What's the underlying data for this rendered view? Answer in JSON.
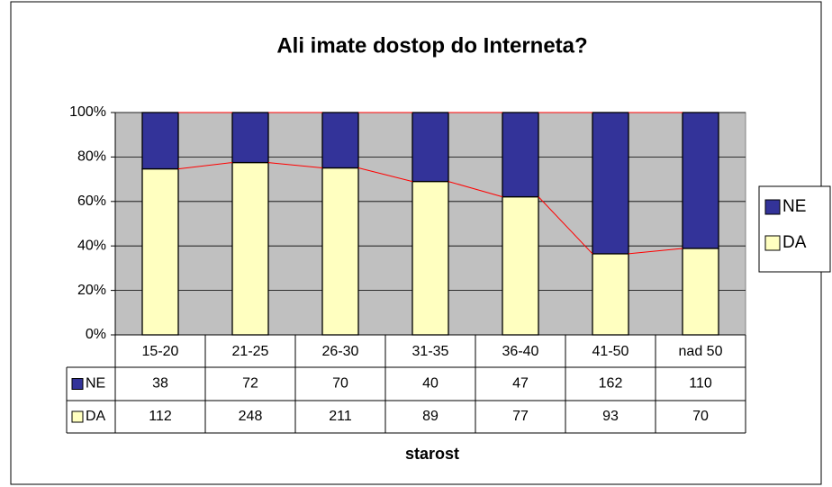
{
  "chart_data": {
    "type": "bar",
    "stacking": "percent",
    "title": "Ali imate dostop do Interneta?",
    "xlabel": "starost",
    "categories": [
      "15-20",
      "21-25",
      "26-30",
      "31-35",
      "36-40",
      "41-50",
      "nad 50"
    ],
    "series": [
      {
        "name": "DA",
        "color": "#ffffc0",
        "values": [
          112,
          248,
          211,
          89,
          77,
          93,
          70
        ]
      },
      {
        "name": "NE",
        "color": "#333399",
        "values": [
          38,
          72,
          70,
          40,
          47,
          162,
          110
        ]
      }
    ],
    "ylim": [
      0,
      100
    ],
    "yticks": [
      {
        "value": 0,
        "label": "0%"
      },
      {
        "value": 20,
        "label": "20%"
      },
      {
        "value": 40,
        "label": "40%"
      },
      {
        "value": 60,
        "label": "60%"
      },
      {
        "value": 80,
        "label": "80%"
      },
      {
        "value": 100,
        "label": "100%"
      }
    ],
    "grid": true,
    "legend": "right",
    "series_lines_color": "#ff0000",
    "plot_background": "#c0c0c0"
  }
}
